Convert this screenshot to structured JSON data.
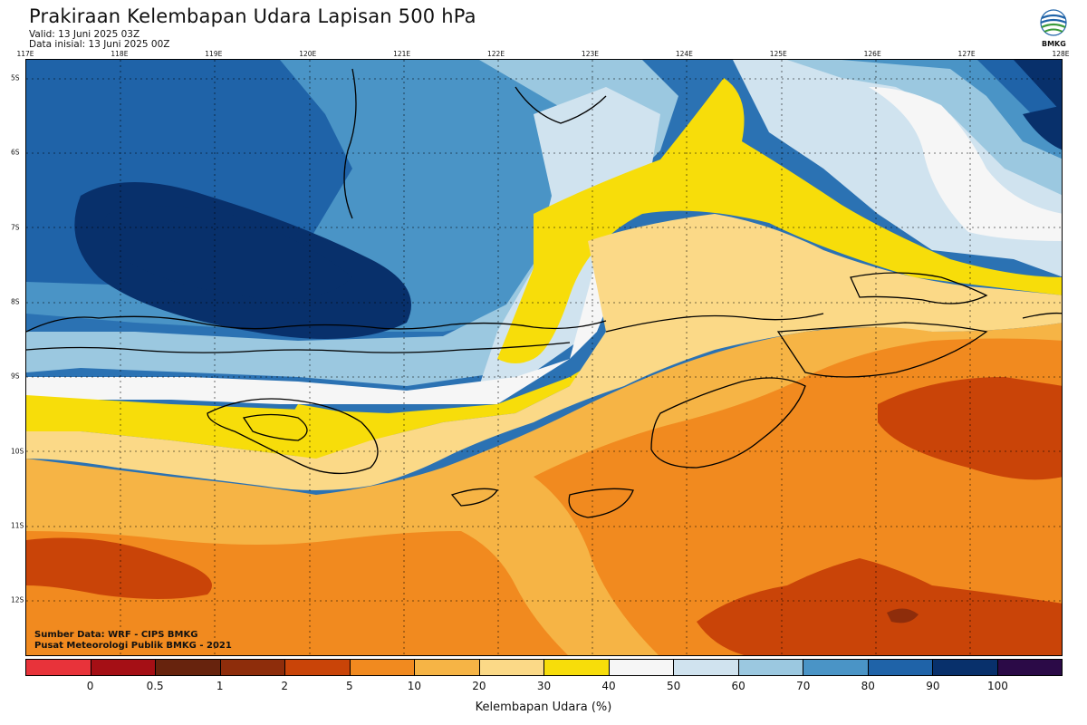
{
  "header": {
    "title": "Prakiraan Kelembapan Udara Lapisan 500 hPa",
    "valid": "Valid: 13 Juni 2025 03Z",
    "initial": "Data inisial: 13 Juni 2025 00Z",
    "logo_text": "BMKG"
  },
  "map": {
    "lon_labels": [
      "117E",
      "118E",
      "119E",
      "120E",
      "121E",
      "122E",
      "123E",
      "124E",
      "125E",
      "126E",
      "127E",
      "128E"
    ],
    "lat_labels": [
      "5S",
      "6S",
      "7S",
      "8S",
      "9S",
      "10S",
      "11S",
      "12S"
    ],
    "credit_source": "Sumber Data: WRF - CIPS BMKG",
    "credit_org": "Pusat Meteorologi Publik BMKG - 2021"
  },
  "legend": {
    "title": "Kelembapan Udara (%)",
    "colors": [
      "#e8333a",
      "#a50f15",
      "#67230d",
      "#8e2d0b",
      "#c94408",
      "#f18a1f",
      "#f6b445",
      "#fbd987",
      "#f7dd0a",
      "#f6f6f6",
      "#d0e3ef",
      "#9bc8e0",
      "#4a94c6",
      "#1f63a8",
      "#08306b",
      "#2b0a47"
    ],
    "ticks": [
      "0",
      "0.5",
      "1",
      "2",
      "5",
      "10",
      "20",
      "30",
      "40",
      "50",
      "60",
      "70",
      "80",
      "90",
      "100"
    ]
  }
}
